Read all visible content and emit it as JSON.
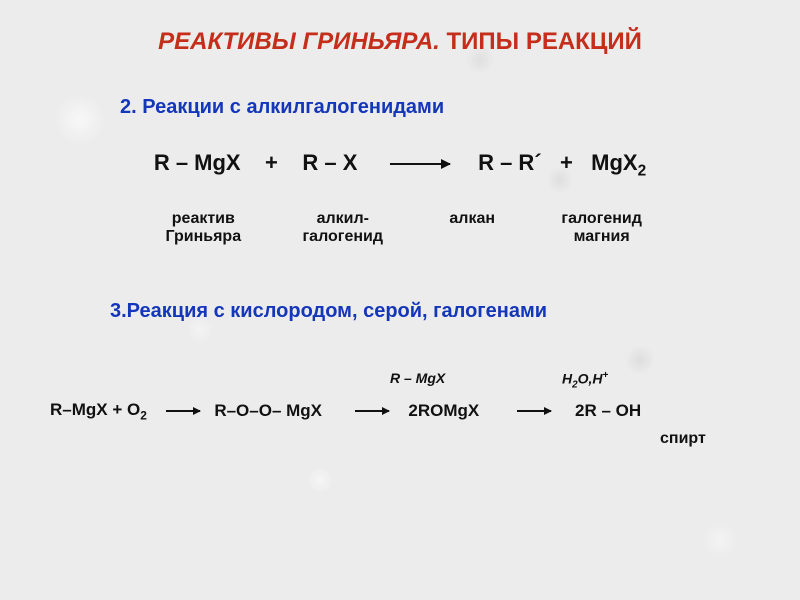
{
  "title": {
    "part1": "РЕАКТИВЫ ГРИНЬЯРА.",
    "part2": " ТИПЫ РЕАКЦИЙ",
    "color": "#c42e1a",
    "fontsize": 24
  },
  "section1": {
    "heading": "2. Реакции с алкилгалогенидами",
    "color": "#1436b8",
    "fontsize": 20,
    "equation": {
      "lhs1": "R – MgX",
      "plus": " + ",
      "lhs2": "R – X",
      "rhs1": "R – R´",
      "rhs2": "MgX",
      "rhs2_sub": "2",
      "color": "#111111",
      "fontsize": 22
    },
    "labels": {
      "c1_l1": "реактив",
      "c1_l2": "Гриньяра",
      "c2_l1": "алкил-",
      "c2_l2": "галогенид",
      "c3_l1": "алкан",
      "c3_l2": "",
      "c4_l1": "галогенид",
      "c4_l2": "магния",
      "fontsize": 16
    }
  },
  "section2": {
    "heading": "3.Реакция с кислородом, серой, галогенами",
    "color": "#1436b8",
    "fontsize": 20,
    "over1": "R – MgX",
    "over2_a": "H",
    "over2_b": "2",
    "over2_c": "O,H",
    "over2_d": "+",
    "equation": {
      "seg1": "R–MgX  +  O",
      "seg1_sub": "2",
      "seg2": "R–O–O– MgX",
      "seg3": "2ROMgX",
      "seg4": "2R – OH",
      "fontsize": 17
    },
    "under": "спирт"
  },
  "background_color": "#ececec"
}
